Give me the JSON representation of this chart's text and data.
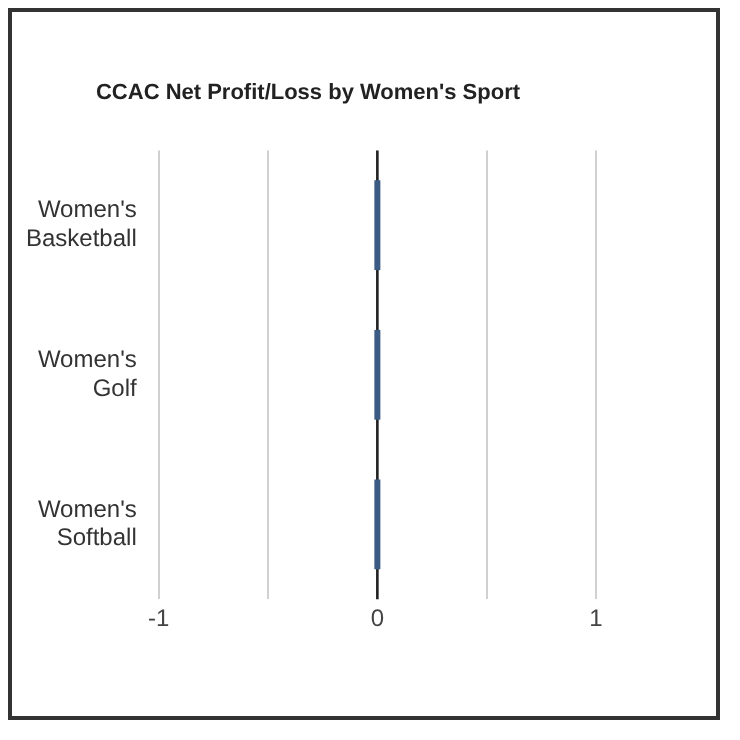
{
  "chart_data": {
    "type": "bar",
    "orientation": "horizontal",
    "title": "CCAC Net Profit/Loss by Women's Sport",
    "categories": [
      "Women's Basketball",
      "Women's Golf",
      "Women's Softball"
    ],
    "values": [
      0,
      0,
      0
    ],
    "color": "#3b5b85",
    "xlim": [
      -1,
      1
    ],
    "xticks": [
      -1,
      {
        "value": -0.5,
        "label": null
      },
      0,
      {
        "value": 0.5,
        "label": null
      },
      1
    ],
    "grid": "x",
    "ref_lines": [
      {
        "axis": "x",
        "value": 0,
        "color": "#222222"
      }
    ]
  }
}
